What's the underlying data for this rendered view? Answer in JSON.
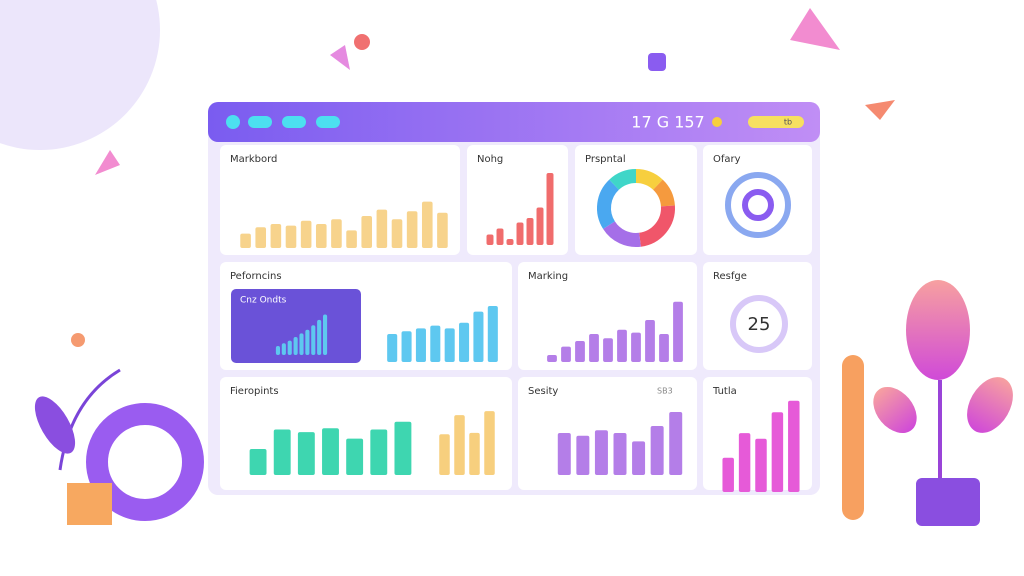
{
  "header": {
    "clock": "17 G 157",
    "badge": "tb"
  },
  "panels": [
    {
      "title": "Markbord",
      "series": [
        {
          "color": "#f7d38c",
          "values": [
            18,
            26,
            30,
            28,
            34,
            30,
            36,
            22,
            40,
            48,
            36,
            46,
            58,
            44
          ]
        }
      ]
    },
    {
      "title": "Nohg",
      "series": [
        {
          "color": "#f06c6c",
          "values": [
            14,
            22,
            8,
            30,
            36,
            50,
            96
          ]
        }
      ]
    },
    {
      "title": "Prspntal",
      "donut": [
        {
          "color": "#f7cf3e",
          "value": 12
        },
        {
          "color": "#f59a3e",
          "value": 12
        },
        {
          "color": "#f0566a",
          "value": 24
        },
        {
          "color": "#a56fe8",
          "value": 18
        },
        {
          "color": "#4aa8f0",
          "value": 22
        },
        {
          "color": "#3fd6c8",
          "value": 12
        }
      ]
    },
    {
      "title": "Ofary"
    },
    {
      "title": "Peforncins",
      "inner": "Cnz Ondts",
      "series": [
        {
          "color": "#5ec8f0",
          "values": [
            20,
            26,
            32,
            40,
            48,
            56,
            66,
            78,
            90
          ]
        },
        {
          "color": "#5ec8f0",
          "values": [
            40,
            44,
            48,
            52,
            48,
            56,
            72,
            80
          ]
        }
      ]
    },
    {
      "title": "Marking",
      "series": [
        {
          "color": "#b47ee8",
          "values": [
            10,
            22,
            30,
            40,
            34,
            46,
            42,
            60,
            40,
            86
          ]
        }
      ]
    },
    {
      "title": "Resfge",
      "gauge": 25
    },
    {
      "title": "Fieropints",
      "series": [
        {
          "color": "#3ed6b0",
          "values": [
            40,
            70,
            66,
            72,
            56,
            70,
            82
          ]
        },
        {
          "color": "#f7cf7e",
          "values": [
            60,
            88,
            62,
            94
          ]
        }
      ]
    },
    {
      "title": "Sesity",
      "legend": "SB3",
      "series": [
        {
          "color": "#b47ee8",
          "values": [
            60,
            56,
            64,
            60,
            48,
            70,
            90
          ]
        }
      ]
    },
    {
      "title": "Tutla",
      "series": [
        {
          "color": "#e65ad8",
          "values": [
            36,
            62,
            56,
            84,
            96
          ]
        }
      ]
    }
  ]
}
